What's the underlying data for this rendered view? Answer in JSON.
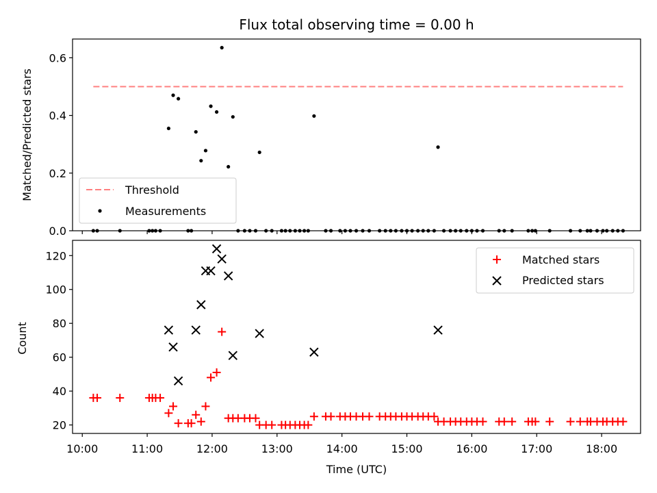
{
  "chart_data": [
    {
      "type": "scatter",
      "title": "Flux total observing time = 0.00 h",
      "xlabel": "",
      "ylabel": "Matched/Predicted stars",
      "xlim": [
        9.85,
        18.6
      ],
      "ylim": [
        0.0,
        0.665
      ],
      "yticks": [
        0.0,
        0.2,
        0.4,
        0.6
      ],
      "ytick_labels": [
        "0.0",
        "0.2",
        "0.4",
        "0.6"
      ],
      "xticks": [
        10,
        11,
        12,
        13,
        14,
        15,
        16,
        17,
        18
      ],
      "grid": false,
      "legend": {
        "position": "lower-left",
        "entries": [
          "Threshold",
          "Measurements"
        ]
      },
      "threshold": {
        "name": "Threshold",
        "y": 0.5,
        "x_range": [
          10.17,
          18.33
        ],
        "color": "#ff7f7f",
        "style": "dashed"
      },
      "series": [
        {
          "name": "Measurements",
          "marker": "dot",
          "color": "#000000",
          "points": [
            [
              10.17,
              0.0
            ],
            [
              10.23,
              0.0
            ],
            [
              10.58,
              0.0
            ],
            [
              11.03,
              0.0
            ],
            [
              11.08,
              0.0
            ],
            [
              11.13,
              0.0
            ],
            [
              11.2,
              0.0
            ],
            [
              11.33,
              0.355
            ],
            [
              11.4,
              0.47
            ],
            [
              11.48,
              0.458
            ],
            [
              11.63,
              0.0
            ],
            [
              11.68,
              0.0
            ],
            [
              11.75,
              0.343
            ],
            [
              11.83,
              0.243
            ],
            [
              11.9,
              0.278
            ],
            [
              11.98,
              0.432
            ],
            [
              12.07,
              0.412
            ],
            [
              12.15,
              0.635
            ],
            [
              12.25,
              0.222
            ],
            [
              12.32,
              0.395
            ],
            [
              12.4,
              0.0
            ],
            [
              12.5,
              0.0
            ],
            [
              12.58,
              0.0
            ],
            [
              12.67,
              0.0
            ],
            [
              12.73,
              0.272
            ],
            [
              12.83,
              0.0
            ],
            [
              12.92,
              0.0
            ],
            [
              13.07,
              0.0
            ],
            [
              13.13,
              0.0
            ],
            [
              13.2,
              0.0
            ],
            [
              13.28,
              0.0
            ],
            [
              13.35,
              0.0
            ],
            [
              13.42,
              0.0
            ],
            [
              13.48,
              0.0
            ],
            [
              13.57,
              0.398
            ],
            [
              13.75,
              0.0
            ],
            [
              13.83,
              0.0
            ],
            [
              13.97,
              0.0
            ],
            [
              14.05,
              0.0
            ],
            [
              14.13,
              0.0
            ],
            [
              14.22,
              0.0
            ],
            [
              14.32,
              0.0
            ],
            [
              14.42,
              0.0
            ],
            [
              14.58,
              0.0
            ],
            [
              14.67,
              0.0
            ],
            [
              14.75,
              0.0
            ],
            [
              14.83,
              0.0
            ],
            [
              14.92,
              0.0
            ],
            [
              15.0,
              0.0
            ],
            [
              15.08,
              0.0
            ],
            [
              15.17,
              0.0
            ],
            [
              15.25,
              0.0
            ],
            [
              15.33,
              0.0
            ],
            [
              15.42,
              0.0
            ],
            [
              15.48,
              0.29
            ],
            [
              15.57,
              0.0
            ],
            [
              15.67,
              0.0
            ],
            [
              15.75,
              0.0
            ],
            [
              15.83,
              0.0
            ],
            [
              15.92,
              0.0
            ],
            [
              16.0,
              0.0
            ],
            [
              16.08,
              0.0
            ],
            [
              16.17,
              0.0
            ],
            [
              16.42,
              0.0
            ],
            [
              16.5,
              0.0
            ],
            [
              16.62,
              0.0
            ],
            [
              16.87,
              0.0
            ],
            [
              16.93,
              0.0
            ],
            [
              16.98,
              0.0
            ],
            [
              17.2,
              0.0
            ],
            [
              17.52,
              0.0
            ],
            [
              17.67,
              0.0
            ],
            [
              17.78,
              0.0
            ],
            [
              17.83,
              0.0
            ],
            [
              17.93,
              0.0
            ],
            [
              18.02,
              0.0
            ],
            [
              18.08,
              0.0
            ],
            [
              18.17,
              0.0
            ],
            [
              18.25,
              0.0
            ],
            [
              18.33,
              0.0
            ]
          ]
        }
      ]
    },
    {
      "type": "scatter",
      "title": "",
      "xlabel": "Time (UTC)",
      "ylabel": "Count",
      "xlim": [
        9.85,
        18.6
      ],
      "ylim": [
        15,
        129
      ],
      "yticks": [
        20,
        40,
        60,
        80,
        100,
        120
      ],
      "ytick_labels": [
        "20",
        "40",
        "60",
        "80",
        "100",
        "120"
      ],
      "xticks": [
        10,
        11,
        12,
        13,
        14,
        15,
        16,
        17,
        18
      ],
      "xtick_labels": [
        "10:00",
        "11:00",
        "12:00",
        "13:00",
        "14:00",
        "15:00",
        "16:00",
        "17:00",
        "18:00"
      ],
      "grid": false,
      "legend": {
        "position": "upper-right",
        "entries": [
          "Matched stars",
          "Predicted stars"
        ]
      },
      "series": [
        {
          "name": "Matched stars",
          "marker": "plus",
          "color": "#ff0000",
          "points": [
            [
              10.17,
              36
            ],
            [
              10.23,
              36
            ],
            [
              10.58,
              36
            ],
            [
              11.03,
              36
            ],
            [
              11.08,
              36
            ],
            [
              11.13,
              36
            ],
            [
              11.2,
              36
            ],
            [
              11.33,
              27
            ],
            [
              11.4,
              31
            ],
            [
              11.48,
              21
            ],
            [
              11.63,
              21
            ],
            [
              11.68,
              21
            ],
            [
              11.75,
              26
            ],
            [
              11.83,
              22
            ],
            [
              11.9,
              31
            ],
            [
              11.98,
              48
            ],
            [
              12.07,
              51
            ],
            [
              12.15,
              75
            ],
            [
              12.25,
              24
            ],
            [
              12.32,
              24
            ],
            [
              12.4,
              24
            ],
            [
              12.5,
              24
            ],
            [
              12.58,
              24
            ],
            [
              12.67,
              24
            ],
            [
              12.73,
              20
            ],
            [
              12.83,
              20
            ],
            [
              12.92,
              20
            ],
            [
              13.07,
              20
            ],
            [
              13.13,
              20
            ],
            [
              13.2,
              20
            ],
            [
              13.28,
              20
            ],
            [
              13.35,
              20
            ],
            [
              13.42,
              20
            ],
            [
              13.48,
              20
            ],
            [
              13.57,
              25
            ],
            [
              13.75,
              25
            ],
            [
              13.83,
              25
            ],
            [
              13.97,
              25
            ],
            [
              14.05,
              25
            ],
            [
              14.13,
              25
            ],
            [
              14.22,
              25
            ],
            [
              14.32,
              25
            ],
            [
              14.42,
              25
            ],
            [
              14.58,
              25
            ],
            [
              14.67,
              25
            ],
            [
              14.75,
              25
            ],
            [
              14.83,
              25
            ],
            [
              14.92,
              25
            ],
            [
              15.0,
              25
            ],
            [
              15.08,
              25
            ],
            [
              15.17,
              25
            ],
            [
              15.25,
              25
            ],
            [
              15.33,
              25
            ],
            [
              15.42,
              25
            ],
            [
              15.48,
              22
            ],
            [
              15.57,
              22
            ],
            [
              15.67,
              22
            ],
            [
              15.75,
              22
            ],
            [
              15.83,
              22
            ],
            [
              15.92,
              22
            ],
            [
              16.0,
              22
            ],
            [
              16.08,
              22
            ],
            [
              16.17,
              22
            ],
            [
              16.42,
              22
            ],
            [
              16.5,
              22
            ],
            [
              16.62,
              22
            ],
            [
              16.87,
              22
            ],
            [
              16.93,
              22
            ],
            [
              16.98,
              22
            ],
            [
              17.2,
              22
            ],
            [
              17.52,
              22
            ],
            [
              17.67,
              22
            ],
            [
              17.78,
              22
            ],
            [
              17.83,
              22
            ],
            [
              17.93,
              22
            ],
            [
              18.02,
              22
            ],
            [
              18.08,
              22
            ],
            [
              18.17,
              22
            ],
            [
              18.25,
              22
            ],
            [
              18.33,
              22
            ]
          ]
        },
        {
          "name": "Predicted stars",
          "marker": "x",
          "color": "#000000",
          "points": [
            [
              11.33,
              76
            ],
            [
              11.4,
              66
            ],
            [
              11.48,
              46
            ],
            [
              11.75,
              76
            ],
            [
              11.83,
              91
            ],
            [
              11.9,
              111
            ],
            [
              11.98,
              111
            ],
            [
              12.07,
              124
            ],
            [
              12.15,
              118
            ],
            [
              12.25,
              108
            ],
            [
              12.32,
              61
            ],
            [
              12.73,
              74
            ],
            [
              13.57,
              63
            ],
            [
              15.48,
              76
            ]
          ]
        }
      ]
    }
  ]
}
